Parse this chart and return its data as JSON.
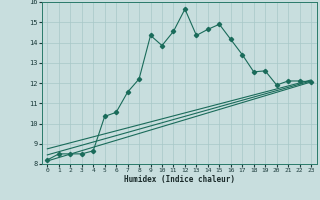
{
  "xlabel": "Humidex (Indice chaleur)",
  "xlim": [
    -0.5,
    23.5
  ],
  "ylim": [
    8,
    16
  ],
  "xticks": [
    0,
    1,
    2,
    3,
    4,
    5,
    6,
    7,
    8,
    9,
    10,
    11,
    12,
    13,
    14,
    15,
    16,
    17,
    18,
    19,
    20,
    21,
    22,
    23
  ],
  "yticks": [
    8,
    9,
    10,
    11,
    12,
    13,
    14,
    15,
    16
  ],
  "bg_color": "#c8dede",
  "grid_color": "#a8c8c8",
  "line_color": "#1a6b5a",
  "main_x": [
    0,
    1,
    2,
    3,
    4,
    5,
    6,
    7,
    8,
    9,
    10,
    11,
    12,
    13,
    14,
    15,
    16,
    17,
    18,
    19,
    20,
    21,
    22,
    23
  ],
  "main_y": [
    8.2,
    8.5,
    8.5,
    8.5,
    8.65,
    10.35,
    10.55,
    11.55,
    12.2,
    14.35,
    13.85,
    14.55,
    15.65,
    14.35,
    14.65,
    14.9,
    14.15,
    13.4,
    12.55,
    12.6,
    11.9,
    12.1,
    12.1,
    12.05
  ],
  "reg_line1": [
    8.2,
    23.0,
    8.15,
    12.05
  ],
  "reg_line2": [
    8.2,
    23.0,
    8.45,
    12.1
  ],
  "reg_line3": [
    8.2,
    23.0,
    8.75,
    12.15
  ]
}
